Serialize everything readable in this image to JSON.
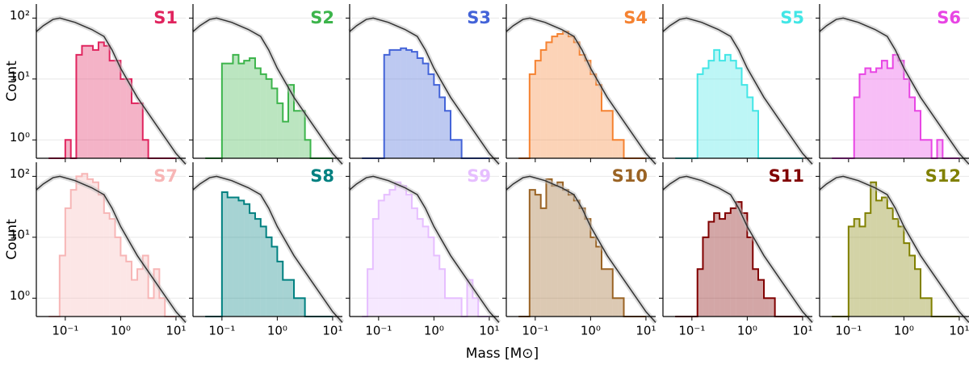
{
  "chart_data": {
    "type": "histogram-grid",
    "xlabel": "Mass [M⊙]",
    "ylabel": "Count",
    "xlim": [
      0.03,
      15
    ],
    "ylim": [
      0.5,
      170
    ],
    "xscale": "log",
    "yscale": "log",
    "grid": true,
    "xticks": [
      {
        "value": 0.1,
        "label": "10⁻¹"
      },
      {
        "value": 1,
        "label": "10⁰"
      },
      {
        "value": 10,
        "label": "10¹"
      }
    ],
    "yticks": [
      {
        "value": 1,
        "label": "10⁰"
      },
      {
        "value": 10,
        "label": "10¹"
      },
      {
        "value": 100,
        "label": "10²"
      }
    ],
    "bins": [
      0.05,
      0.063,
      0.079,
      0.1,
      0.126,
      0.158,
      0.2,
      0.251,
      0.316,
      0.398,
      0.501,
      0.631,
      0.794,
      1,
      1.26,
      1.58,
      2,
      2.51,
      3.16,
      3.98,
      5.01,
      6.31,
      7.94,
      10
    ],
    "reference": {
      "color": "#333333",
      "x": [
        0.03,
        0.04,
        0.06,
        0.08,
        0.15,
        0.3,
        0.5,
        0.7,
        1,
        2,
        4,
        10,
        15
      ],
      "y": [
        60,
        75,
        95,
        100,
        85,
        65,
        50,
        30,
        15,
        5,
        2,
        0.6,
        0.4
      ]
    },
    "panels": [
      {
        "title": "S1",
        "color": "#e0245e",
        "counts": [
          0,
          0,
          0,
          1,
          0,
          25,
          35,
          35,
          30,
          40,
          35,
          20,
          20,
          10,
          10,
          4,
          4,
          1,
          0,
          0,
          0,
          0,
          0
        ]
      },
      {
        "title": "S2",
        "color": "#3cb44b",
        "counts": [
          0,
          0,
          0,
          18,
          18,
          25,
          18,
          20,
          22,
          15,
          12,
          10,
          7,
          4,
          2,
          8,
          3,
          3,
          1,
          0,
          0,
          0,
          0
        ]
      },
      {
        "title": "S3",
        "color": "#4363d8",
        "counts": [
          0,
          0,
          0,
          0,
          25,
          30,
          30,
          32,
          30,
          28,
          22,
          18,
          12,
          8,
          5,
          3,
          1,
          1,
          0,
          0,
          0,
          0,
          0
        ]
      },
      {
        "title": "S4",
        "color": "#f58231",
        "counts": [
          0,
          0,
          12,
          20,
          30,
          40,
          50,
          55,
          60,
          50,
          40,
          25,
          20,
          12,
          8,
          3,
          3,
          1,
          1,
          0,
          0,
          0,
          0
        ]
      },
      {
        "title": "S5",
        "color": "#42e6e6",
        "counts": [
          0,
          0,
          0,
          0,
          12,
          15,
          20,
          30,
          20,
          25,
          20,
          15,
          8,
          5,
          3,
          0,
          0,
          0,
          0,
          0,
          0,
          0,
          0
        ]
      },
      {
        "title": "S6",
        "color": "#e845e4",
        "counts": [
          0,
          0,
          0,
          0,
          5,
          12,
          15,
          13,
          15,
          20,
          15,
          25,
          20,
          10,
          5,
          3,
          1,
          1,
          0,
          1,
          0,
          0,
          0
        ]
      },
      {
        "title": "S7",
        "color": "#f7b6b6",
        "counts": [
          0,
          0,
          5,
          30,
          60,
          100,
          110,
          90,
          80,
          50,
          25,
          20,
          10,
          5,
          4,
          2,
          3,
          5,
          1,
          3,
          1,
          0,
          0
        ]
      },
      {
        "title": "S8",
        "color": "#008080",
        "counts": [
          0,
          0,
          0,
          55,
          45,
          45,
          40,
          35,
          25,
          20,
          15,
          10,
          7,
          4,
          2,
          2,
          1,
          1,
          0,
          0,
          0,
          0,
          0
        ]
      },
      {
        "title": "S9",
        "color": "#e6beff",
        "counts": [
          0,
          3,
          20,
          40,
          50,
          60,
          80,
          70,
          50,
          30,
          20,
          15,
          10,
          5,
          3,
          1,
          1,
          1,
          0,
          2,
          1,
          0,
          0
        ]
      },
      {
        "title": "S10",
        "color": "#9a6324",
        "counts": [
          0,
          0,
          60,
          50,
          30,
          90,
          70,
          80,
          60,
          50,
          40,
          30,
          20,
          10,
          7,
          3,
          3,
          1,
          1,
          0,
          0,
          0,
          0
        ]
      },
      {
        "title": "S11",
        "color": "#800000",
        "counts": [
          0,
          0,
          0,
          0,
          3,
          10,
          18,
          25,
          20,
          25,
          30,
          38,
          25,
          10,
          3,
          2,
          1,
          1,
          0,
          0,
          0,
          0,
          0
        ]
      },
      {
        "title": "S12",
        "color": "#808000",
        "counts": [
          0,
          0,
          0,
          15,
          20,
          15,
          25,
          80,
          40,
          45,
          30,
          20,
          15,
          8,
          5,
          3,
          1,
          1,
          0,
          0,
          0,
          0,
          0
        ]
      }
    ]
  }
}
